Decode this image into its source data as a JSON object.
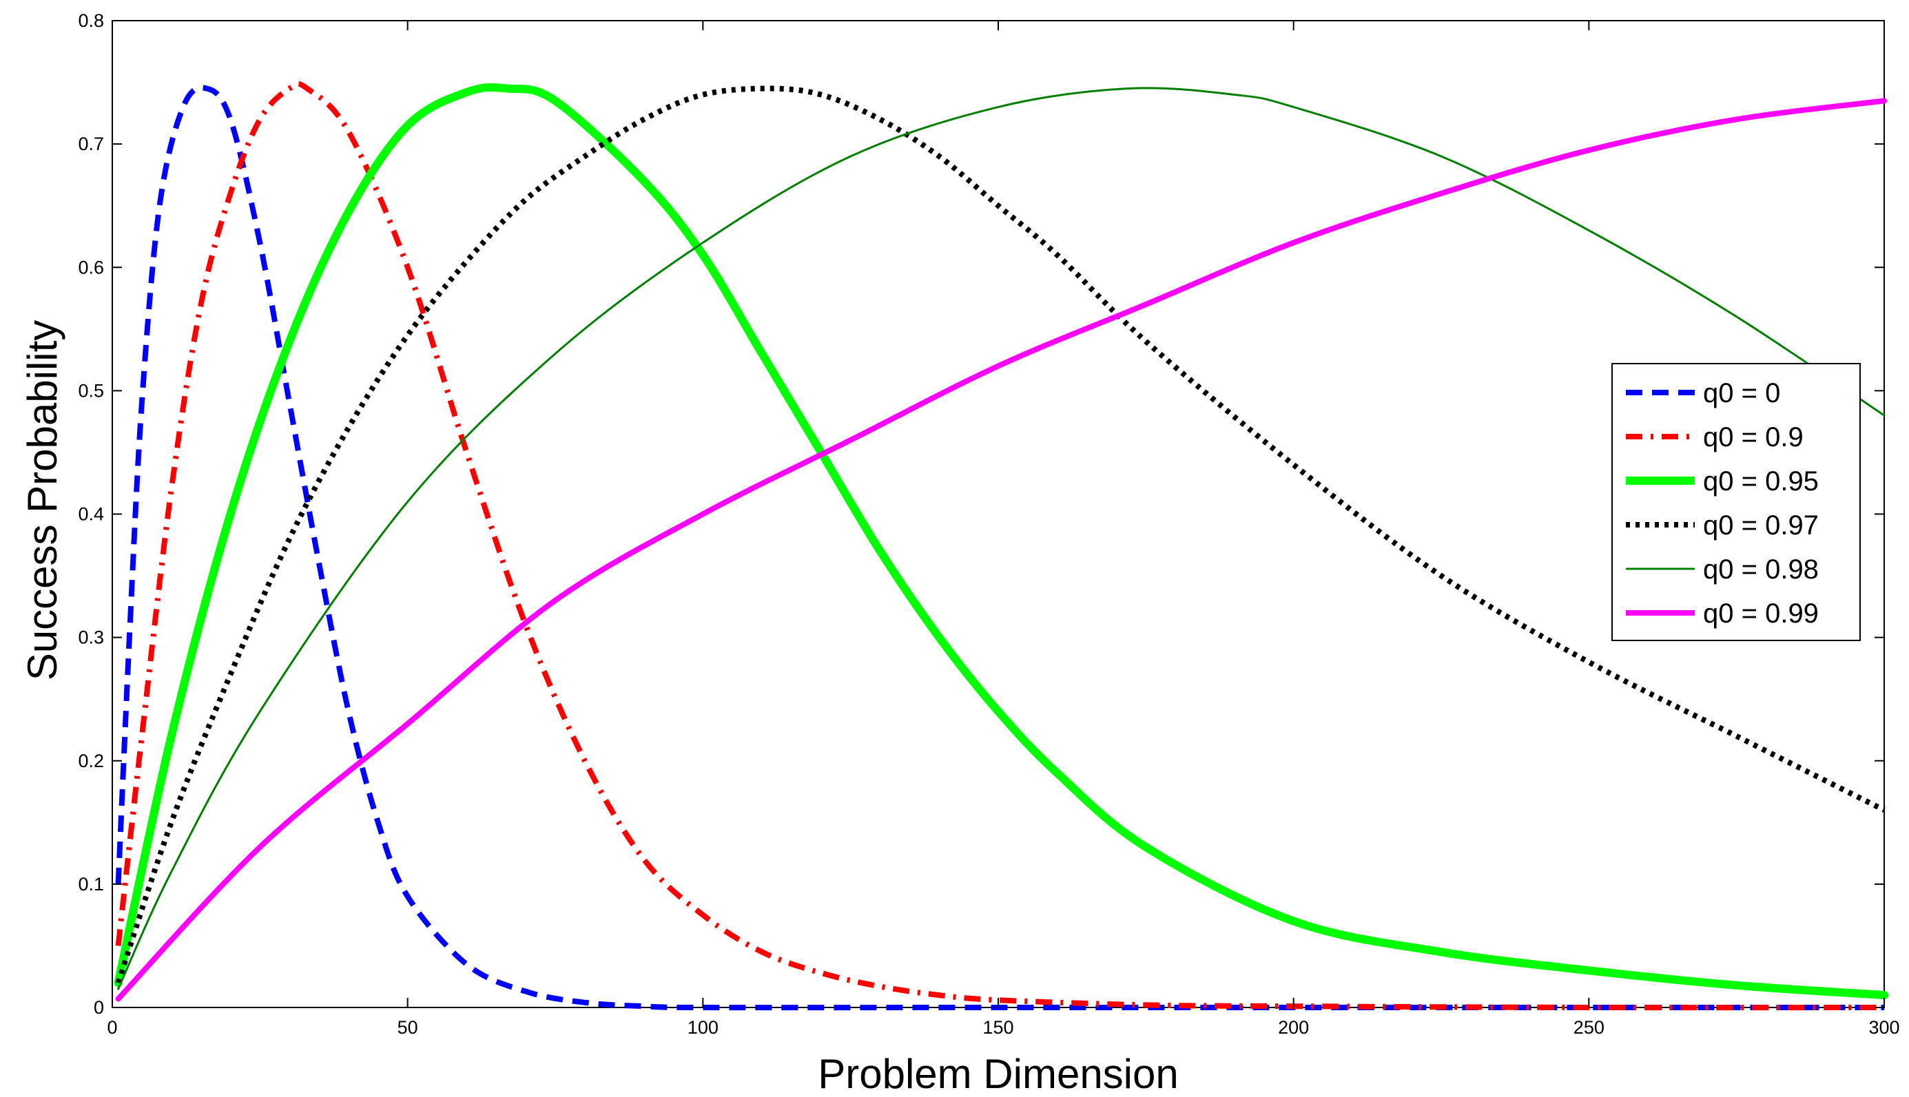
{
  "chart_data": {
    "type": "line",
    "title": "",
    "xlabel": "Problem Dimension",
    "ylabel": "Success Probability",
    "xlim": [
      0,
      300
    ],
    "ylim": [
      0,
      0.8
    ],
    "xticks": [
      0,
      50,
      100,
      150,
      200,
      250,
      300
    ],
    "xtick_labels": [
      "0",
      "50",
      "100",
      "150",
      "200",
      "250",
      "300"
    ],
    "yticks": [
      0,
      0.1,
      0.2,
      0.3,
      0.4,
      0.5,
      0.6,
      0.7,
      0.8
    ],
    "ytick_labels": [
      "0",
      "0.1",
      "0.2",
      "0.3",
      "0.4",
      "0.5",
      "0.6",
      "0.7",
      "0.8"
    ],
    "grid": false,
    "legend_position": "right",
    "series": [
      {
        "name": "q0 = 0",
        "color": "#0000ff",
        "style": "dashed",
        "x": [
          1,
          3,
          5,
          8,
          12,
          16,
          20,
          25,
          30,
          35,
          40,
          45,
          50,
          60,
          70,
          80,
          90,
          100,
          150,
          200,
          250,
          300
        ],
        "y": [
          0.1,
          0.31,
          0.49,
          0.65,
          0.73,
          0.745,
          0.72,
          0.62,
          0.49,
          0.36,
          0.24,
          0.15,
          0.09,
          0.035,
          0.013,
          0.004,
          0.001,
          0.0,
          0.0,
          0.0,
          0.0,
          0.0
        ]
      },
      {
        "name": "q0 = 0.9",
        "color": "#ff0000",
        "style": "dashdot",
        "x": [
          1,
          5,
          10,
          15,
          20,
          25,
          30,
          33,
          40,
          50,
          60,
          70,
          80,
          90,
          100,
          110,
          120,
          130,
          140,
          150,
          175,
          200,
          250,
          300
        ],
        "y": [
          0.05,
          0.22,
          0.42,
          0.57,
          0.66,
          0.72,
          0.745,
          0.745,
          0.71,
          0.6,
          0.45,
          0.31,
          0.2,
          0.12,
          0.075,
          0.045,
          0.028,
          0.017,
          0.01,
          0.006,
          0.002,
          0.001,
          0.0,
          0.0
        ]
      },
      {
        "name": "q0 = 0.95",
        "color": "#00ff00",
        "style": "solid-thick",
        "x": [
          1,
          10,
          20,
          30,
          40,
          50,
          60,
          67,
          75,
          90,
          100,
          110,
          120,
          130,
          140,
          150,
          160,
          175,
          200,
          225,
          250,
          275,
          300
        ],
        "y": [
          0.02,
          0.22,
          0.4,
          0.54,
          0.645,
          0.715,
          0.742,
          0.745,
          0.735,
          0.67,
          0.61,
          0.53,
          0.45,
          0.37,
          0.3,
          0.24,
          0.19,
          0.13,
          0.07,
          0.045,
          0.03,
          0.018,
          0.01
        ]
      },
      {
        "name": "q0 = 0.97",
        "color": "#000000",
        "style": "dotted",
        "x": [
          1,
          10,
          20,
          30,
          40,
          50,
          60,
          70,
          80,
          90,
          100,
          111,
          120,
          130,
          140,
          150,
          160,
          175,
          200,
          225,
          250,
          275,
          300
        ],
        "y": [
          0.02,
          0.15,
          0.27,
          0.38,
          0.47,
          0.545,
          0.605,
          0.655,
          0.69,
          0.72,
          0.74,
          0.745,
          0.74,
          0.72,
          0.69,
          0.65,
          0.61,
          0.54,
          0.44,
          0.35,
          0.28,
          0.22,
          0.16
        ]
      },
      {
        "name": "q0 = 0.98",
        "color": "#008000",
        "style": "solid-thin",
        "x": [
          1,
          10,
          25,
          50,
          75,
          100,
          125,
          150,
          172,
          190,
          200,
          225,
          250,
          275,
          300
        ],
        "y": [
          0.015,
          0.11,
          0.24,
          0.41,
          0.53,
          0.62,
          0.69,
          0.73,
          0.745,
          0.74,
          0.73,
          0.69,
          0.63,
          0.56,
          0.48
        ]
      },
      {
        "name": "q0 = 0.99",
        "color": "#ff00ff",
        "style": "solid-medium",
        "x": [
          1,
          25,
          50,
          75,
          100,
          125,
          150,
          175,
          200,
          225,
          250,
          275,
          300
        ],
        "y": [
          0.007,
          0.13,
          0.23,
          0.33,
          0.4,
          0.46,
          0.52,
          0.57,
          0.62,
          0.66,
          0.695,
          0.72,
          0.735
        ]
      }
    ]
  }
}
